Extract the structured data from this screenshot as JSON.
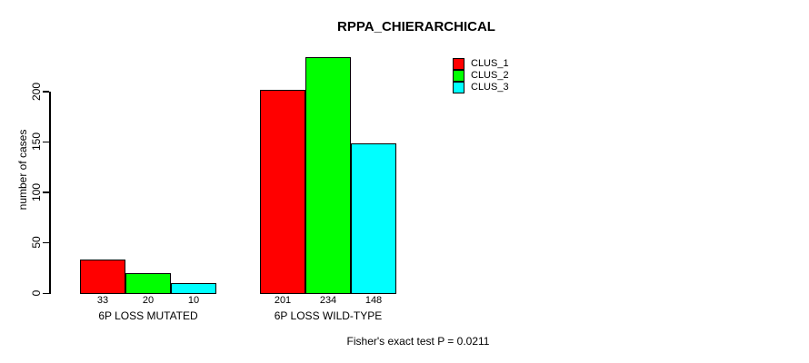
{
  "title": "RPPA_CHIERARCHICAL",
  "footer": "Fisher's exact test P = 0.0211",
  "colors": {
    "background": "#ffffff",
    "bar_border": "#000000",
    "clus_1": "#ff0000",
    "clus_2": "#00ff00",
    "clus_3": "#00ffff"
  },
  "legend": {
    "items": [
      {
        "label": "CLUS_1",
        "color": "#ff0000"
      },
      {
        "label": "CLUS_2",
        "color": "#00ff00"
      },
      {
        "label": "CLUS_3",
        "color": "#00ffff"
      }
    ]
  },
  "chart_data": {
    "type": "bar",
    "title": "RPPA_CHIERARCHICAL",
    "xlabel": "",
    "ylabel": "number of cases",
    "categories": [
      "6P LOSS MUTATED",
      "6P LOSS WILD-TYPE"
    ],
    "series": [
      {
        "name": "CLUS_1",
        "color": "#ff0000",
        "values": [
          33,
          201
        ]
      },
      {
        "name": "CLUS_2",
        "color": "#00ff00",
        "values": [
          20,
          234
        ]
      },
      {
        "name": "CLUS_3",
        "color": "#00ffff",
        "values": [
          10,
          148
        ]
      }
    ],
    "bar_value_labels": [
      [
        "33",
        "20",
        "10"
      ],
      [
        "201",
        "234",
        "148"
      ]
    ],
    "yticks": [
      0,
      50,
      100,
      150,
      200
    ],
    "ytick_labels": [
      "0",
      "50",
      "100",
      "150",
      "200"
    ],
    "ylim": [
      0,
      240
    ],
    "grid": false,
    "legend_position": "top-right",
    "legend_entries": [
      "CLUS_1",
      "CLUS_2",
      "CLUS_3"
    ],
    "annotation": "Fisher's exact test P = 0.0211"
  }
}
